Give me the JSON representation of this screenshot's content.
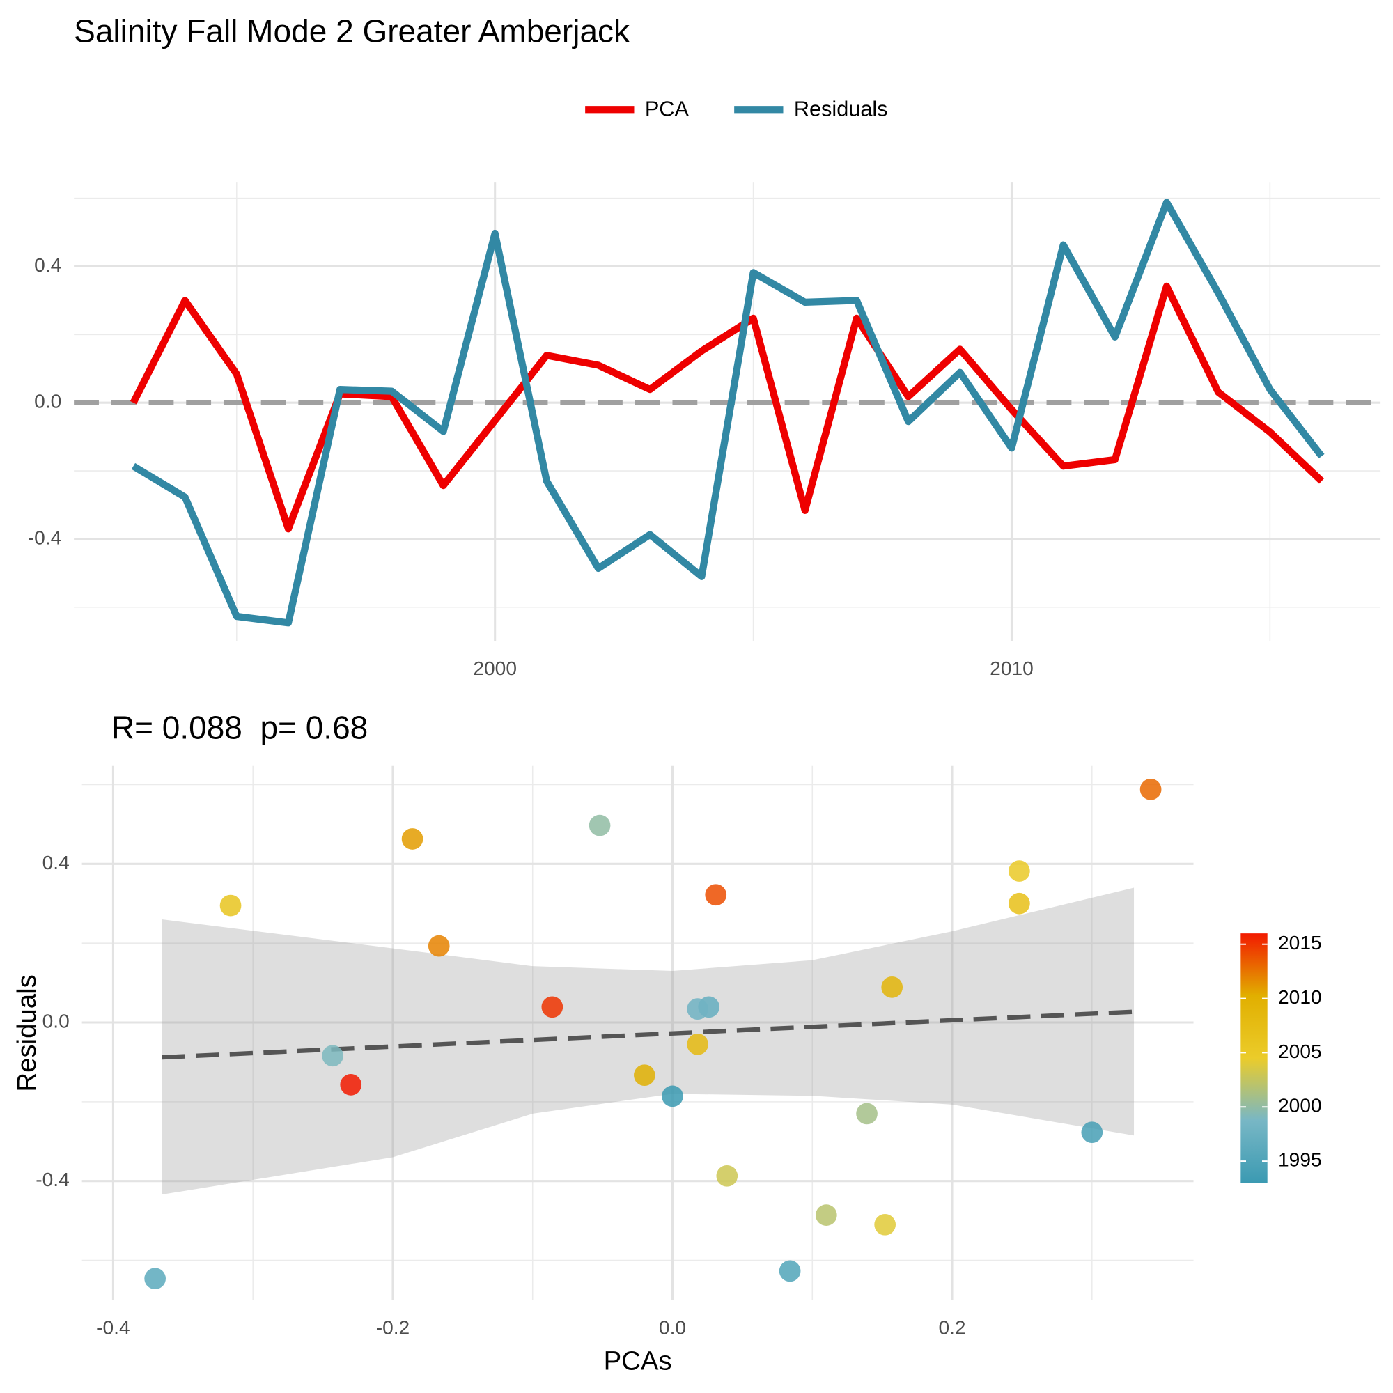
{
  "chart_data": [
    {
      "type": "line",
      "title": "Salinity Fall Mode 2 Greater Amberjack",
      "x": [
        1993,
        1994,
        1995,
        1996,
        1997,
        1998,
        1999,
        2000,
        2001,
        2002,
        2003,
        2004,
        2005,
        2006,
        2007,
        2008,
        2009,
        2010,
        2011,
        2012,
        2013,
        2014,
        2015,
        2016
      ],
      "series": [
        {
          "name": "PCA",
          "color": "#EE0000",
          "values": [
            0.0,
            0.3,
            0.084,
            -0.37,
            0.026,
            0.018,
            -0.243,
            -0.052,
            0.139,
            0.11,
            0.039,
            0.152,
            0.248,
            -0.316,
            0.248,
            0.018,
            0.157,
            -0.02,
            -0.186,
            -0.167,
            0.342,
            0.031,
            -0.086,
            -0.23
          ]
        },
        {
          "name": "Residuals",
          "color": "#3288A4",
          "values": [
            -0.186,
            -0.277,
            -0.627,
            -0.646,
            0.039,
            0.034,
            -0.084,
            0.497,
            -0.23,
            -0.486,
            -0.387,
            -0.51,
            0.382,
            0.295,
            0.3,
            -0.055,
            0.089,
            -0.133,
            0.463,
            0.193,
            0.588,
            0.322,
            0.039,
            -0.157
          ]
        }
      ],
      "xlim": [
        1991.85,
        2017.14
      ],
      "xticks": [
        2000,
        2010
      ],
      "xminor": [
        1995,
        2005,
        2015
      ],
      "ylim": [
        -0.7,
        0.646
      ],
      "yticks": [
        -0.4,
        {
          "value": 0,
          "label": "0.0"
        },
        0.4
      ],
      "yminor": [
        -0.6,
        -0.2,
        0.2,
        0.6
      ],
      "reference_line": 0,
      "grid": true,
      "legend": "top"
    },
    {
      "type": "scatter",
      "title": "R= 0.088  p= 0.68",
      "x_label": "PCAs",
      "y_label": "Residuals",
      "x": [
        0.0,
        0.3,
        0.084,
        -0.37,
        0.026,
        0.018,
        -0.243,
        -0.052,
        0.139,
        0.11,
        0.039,
        0.152,
        0.248,
        -0.316,
        0.248,
        0.018,
        0.157,
        -0.02,
        -0.186,
        -0.167,
        0.342,
        0.031,
        -0.086,
        -0.23
      ],
      "values": [
        -0.186,
        -0.277,
        -0.627,
        -0.646,
        0.039,
        0.034,
        -0.084,
        0.497,
        -0.23,
        -0.486,
        -0.387,
        -0.51,
        0.382,
        0.295,
        0.3,
        -0.055,
        0.089,
        -0.133,
        0.463,
        0.193,
        0.588,
        0.322,
        0.039,
        -0.157
      ],
      "years": [
        1993,
        1994,
        1995,
        1996,
        1997,
        1998,
        1999,
        2000,
        2001,
        2002,
        2003,
        2004,
        2005,
        2006,
        2007,
        2008,
        2009,
        2010,
        2011,
        2012,
        2013,
        2014,
        2015,
        2016
      ],
      "colorbar": {
        "range": [
          1993,
          2016
        ],
        "ticks": [
          1995,
          2000,
          2005,
          2010,
          2015
        ],
        "colors": [
          "#3B9AB2",
          "#78B7C5",
          "#EBCC2A",
          "#E1AF00",
          "#F21A00"
        ]
      },
      "fit": {
        "x": [
          -0.365,
          0.33
        ],
        "y": [
          -0.088,
          0.027
        ],
        "band_x": [
          -0.365,
          -0.2,
          -0.1,
          0,
          0.1,
          0.2,
          0.33
        ],
        "band_upper": [
          0.26,
          0.187,
          0.142,
          0.13,
          0.157,
          0.23,
          0.34
        ],
        "band_lower": [
          -0.434,
          -0.34,
          -0.23,
          -0.18,
          -0.185,
          -0.207,
          -0.285
        ]
      },
      "xlim": [
        -0.4223,
        0.3726
      ],
      "xticks": [
        -0.4,
        -0.2,
        {
          "value": 0,
          "label": "0.0"
        },
        0.2
      ],
      "xminor": [
        -0.3,
        -0.1,
        0.1,
        0.3
      ],
      "ylim": [
        -0.701,
        0.647
      ],
      "yticks": [
        -0.4,
        {
          "value": 0,
          "label": "0.0"
        },
        0.4
      ],
      "yminor": [
        -0.6,
        -0.2,
        0.2,
        0.6
      ],
      "grid": true
    }
  ]
}
